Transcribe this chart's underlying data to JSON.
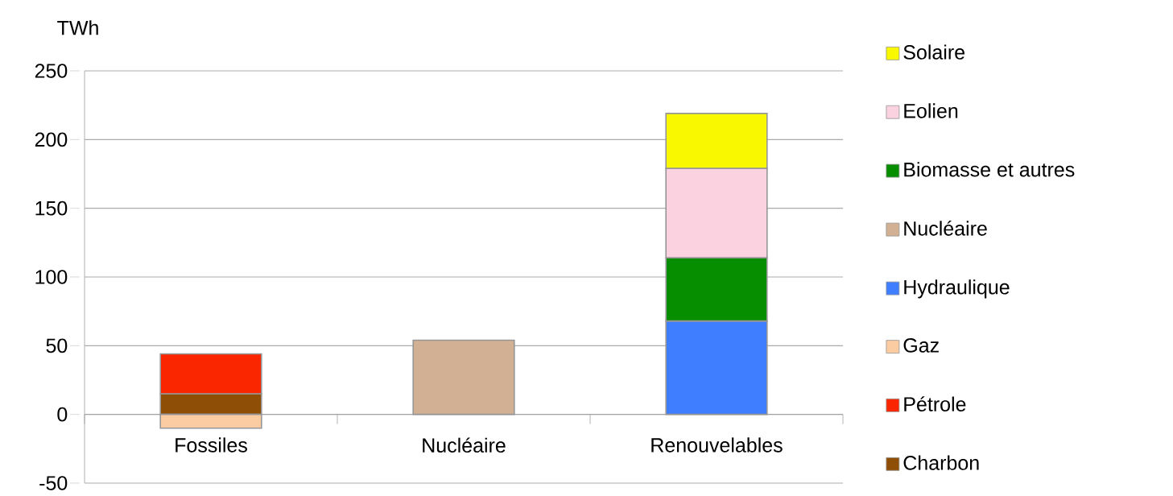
{
  "chart_data": {
    "type": "bar",
    "stacked": true,
    "ylabel": "TWh",
    "categories": [
      "Fossiles",
      "Nucléaire",
      "Renouvelables"
    ],
    "series": [
      {
        "name": "Charbon",
        "color": "#8f4e05",
        "values": [
          15,
          null,
          null
        ]
      },
      {
        "name": "Pétrole",
        "color": "#fa2600",
        "values": [
          29,
          null,
          null
        ]
      },
      {
        "name": "Gaz",
        "color": "#fbcca1",
        "values": [
          -10,
          null,
          null
        ]
      },
      {
        "name": "Hydraulique",
        "color": "#3e7eff",
        "values": [
          null,
          null,
          68
        ]
      },
      {
        "name": "Nucléaire",
        "color": "#d1b093",
        "values": [
          null,
          54,
          null
        ]
      },
      {
        "name": "Biomasse et autres",
        "color": "#078d00",
        "values": [
          null,
          null,
          46
        ]
      },
      {
        "name": "Eolien",
        "color": "#fbd2df",
        "values": [
          null,
          null,
          65
        ]
      },
      {
        "name": "Solaire",
        "color": "#f9f800",
        "values": [
          null,
          null,
          40
        ]
      }
    ],
    "ylim": [
      -50,
      250
    ],
    "yticks": [
      -50,
      0,
      50,
      100,
      150,
      200,
      250
    ],
    "grid": "y",
    "legend": "right"
  }
}
